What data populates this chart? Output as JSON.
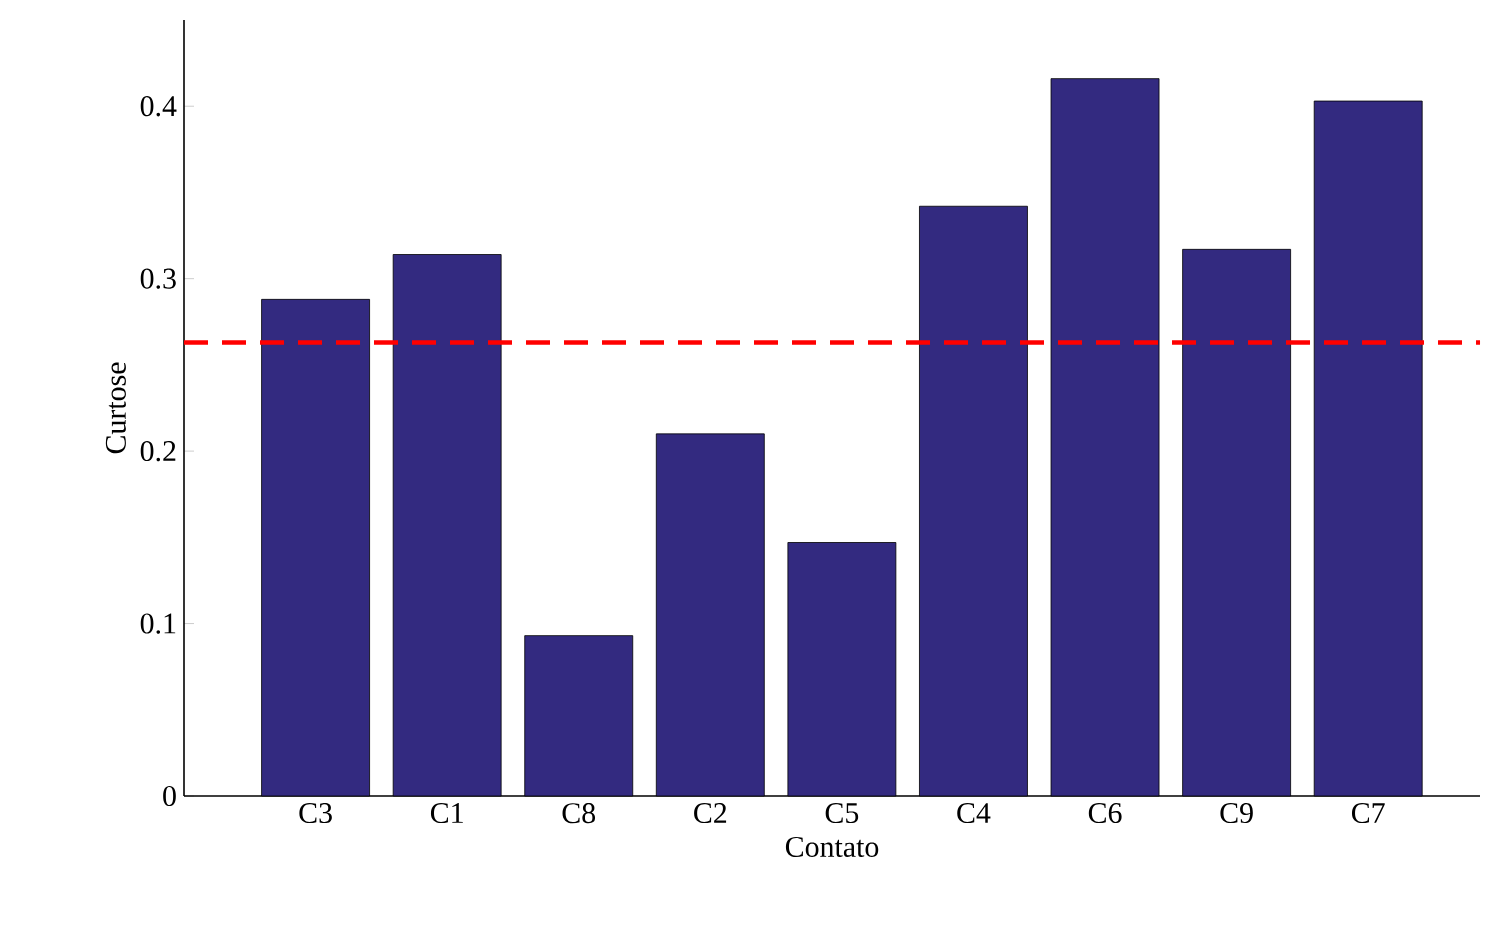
{
  "chart_data": {
    "type": "bar",
    "xlabel": "Contato",
    "ylabel": "Curtose",
    "categories": [
      "C3",
      "C1",
      "C8",
      "C2",
      "C5",
      "C4",
      "C6",
      "C9",
      "C7"
    ],
    "values": [
      0.288,
      0.314,
      0.093,
      0.21,
      0.147,
      0.342,
      0.416,
      0.317,
      0.403
    ],
    "color": "#332a80",
    "ylim": [
      0,
      0.45
    ],
    "yticks": [
      0,
      0.1,
      0.2,
      0.3,
      0.4
    ],
    "grid": false,
    "ref_lines": [
      {
        "axis": "y",
        "value": 0.263,
        "color": "#ff0000",
        "line_style": "dashed"
      }
    ]
  }
}
